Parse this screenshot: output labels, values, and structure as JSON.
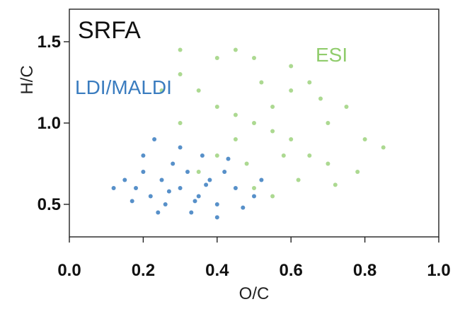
{
  "chart_data": {
    "type": "scatter",
    "title": "SRFA",
    "xlabel": "O/C",
    "ylabel": "H/C",
    "xlim": [
      0.0,
      1.0
    ],
    "ylim": [
      0.3,
      1.7
    ],
    "xticks": [
      "0.0",
      "0.2",
      "0.4",
      "0.6",
      "0.8",
      "1.0"
    ],
    "yticks": [
      "0.5",
      "1.0",
      "1.5"
    ],
    "grid": false,
    "series": [
      {
        "name": "ESI",
        "color": "#90cc6c",
        "points": [
          [
            0.5,
            1.0
          ],
          [
            0.45,
            1.05
          ],
          [
            0.55,
            0.95
          ],
          [
            0.4,
            1.1
          ],
          [
            0.6,
            0.9
          ],
          [
            0.35,
            1.2
          ],
          [
            0.65,
            0.8
          ],
          [
            0.3,
            1.3
          ],
          [
            0.7,
            0.75
          ],
          [
            0.55,
            1.1
          ],
          [
            0.45,
            0.9
          ],
          [
            0.6,
            1.2
          ],
          [
            0.4,
            0.8
          ],
          [
            0.65,
            1.25
          ],
          [
            0.35,
            0.7
          ],
          [
            0.7,
            1.0
          ],
          [
            0.3,
            1.0
          ],
          [
            0.75,
            1.1
          ],
          [
            0.25,
            1.2
          ],
          [
            0.8,
            0.9
          ],
          [
            0.5,
            1.4
          ],
          [
            0.5,
            0.6
          ],
          [
            0.45,
            1.45
          ],
          [
            0.55,
            0.55
          ],
          [
            0.6,
            1.35
          ],
          [
            0.62,
            0.65
          ],
          [
            0.72,
            0.62
          ],
          [
            0.85,
            0.85
          ],
          [
            0.4,
            1.4
          ],
          [
            0.3,
            1.45
          ],
          [
            0.68,
            1.15
          ],
          [
            0.58,
            0.8
          ],
          [
            0.78,
            0.7
          ],
          [
            0.52,
            1.25
          ],
          [
            0.48,
            0.75
          ]
        ]
      },
      {
        "name": "LDI/MALDI",
        "color": "#3a7cbf",
        "points": [
          [
            0.3,
            0.6
          ],
          [
            0.25,
            0.65
          ],
          [
            0.35,
            0.55
          ],
          [
            0.2,
            0.7
          ],
          [
            0.4,
            0.5
          ],
          [
            0.28,
            0.75
          ],
          [
            0.33,
            0.45
          ],
          [
            0.22,
            0.55
          ],
          [
            0.38,
            0.65
          ],
          [
            0.18,
            0.6
          ],
          [
            0.42,
            0.7
          ],
          [
            0.26,
            0.5
          ],
          [
            0.36,
            0.8
          ],
          [
            0.15,
            0.65
          ],
          [
            0.45,
            0.6
          ],
          [
            0.3,
            0.85
          ],
          [
            0.24,
            0.45
          ],
          [
            0.4,
            0.42
          ],
          [
            0.5,
            0.55
          ],
          [
            0.12,
            0.6
          ],
          [
            0.2,
            0.8
          ],
          [
            0.32,
            0.7
          ],
          [
            0.27,
            0.58
          ],
          [
            0.37,
            0.62
          ],
          [
            0.47,
            0.48
          ],
          [
            0.23,
            0.9
          ],
          [
            0.43,
            0.78
          ],
          [
            0.17,
            0.52
          ],
          [
            0.52,
            0.65
          ],
          [
            0.34,
            0.52
          ]
        ]
      }
    ]
  }
}
